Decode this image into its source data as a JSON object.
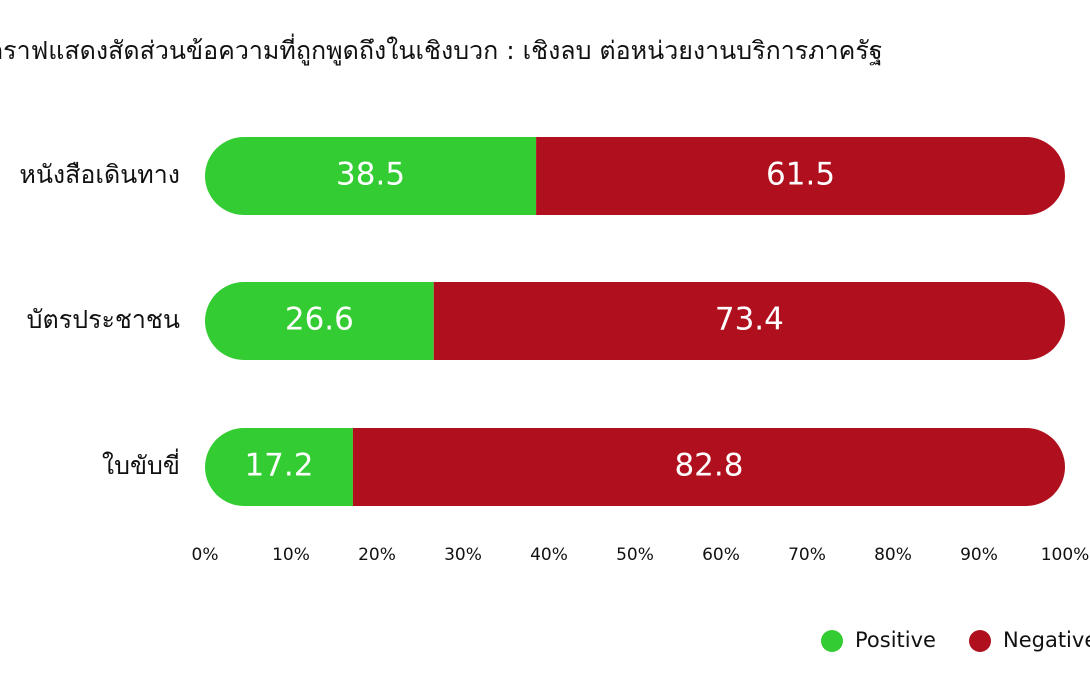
{
  "chart_data": {
    "type": "stacked-bar-horizontal",
    "title": "กราฟแสดงสัดส่วนข้อความที่ถูกพูดถึงในเชิงบวก : เชิงลบ ต่อหน่วยงานบริการภาครัฐ",
    "categories": [
      "หนังสือเดินทาง",
      "บัตรประชาชน",
      "ใบขับขี่"
    ],
    "series": [
      {
        "name": "Positive",
        "color": "#33cc33",
        "values": [
          38.5,
          26.6,
          17.2
        ]
      },
      {
        "name": "Negative",
        "color": "#b0101e",
        "values": [
          61.5,
          73.4,
          82.8
        ]
      }
    ],
    "xlim": [
      0,
      100
    ],
    "xticks": [
      {
        "value": 0,
        "label": "0%"
      },
      {
        "value": 10,
        "label": "10%"
      },
      {
        "value": 20,
        "label": "20%"
      },
      {
        "value": 30,
        "label": "30%"
      },
      {
        "value": 40,
        "label": "40%"
      },
      {
        "value": 50,
        "label": "50%"
      },
      {
        "value": 60,
        "label": "60%"
      },
      {
        "value": 70,
        "label": "70%"
      },
      {
        "value": 80,
        "label": "80%"
      },
      {
        "value": 90,
        "label": "90%"
      },
      {
        "value": 100,
        "label": "100%"
      }
    ],
    "legend": "bottom-right"
  }
}
